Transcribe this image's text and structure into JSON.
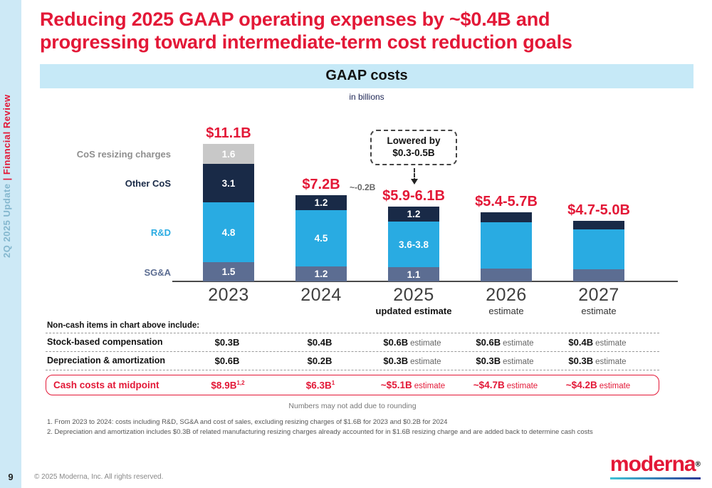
{
  "sidebar": {
    "tab_light": "2Q 2025 Update ",
    "tab_bold": "| Financial Review",
    "page_number": "9"
  },
  "title": "Reducing 2025 GAAP operating expenses by ~$0.4B and progressing toward intermediate-term cost reduction goals",
  "banner": {
    "title": "GAAP costs",
    "subtitle": "in billions"
  },
  "chart_data": {
    "type": "bar",
    "stacked": true,
    "title": "GAAP costs",
    "unit": "USD billions",
    "segment_order": [
      "SG&A",
      "R&D",
      "Other CoS",
      "CoS resizing charges"
    ],
    "segment_colors": {
      "SG&A": "#5c6d92",
      "R&D": "#29abe2",
      "Other CoS": "#192a47",
      "CoS resizing charges": "#c8c8c8"
    },
    "legend_colors": {
      "SG&A": "#5c6d92",
      "R&D": "#29abe2",
      "Other CoS": "#192a47",
      "CoS resizing charges": "#8e8e8e"
    },
    "bars": [
      {
        "year": "2023",
        "total_label": "$11.1B",
        "segments": [
          {
            "name": "SG&A",
            "value": 1.5,
            "label": "1.5"
          },
          {
            "name": "R&D",
            "value": 4.8,
            "label": "4.8"
          },
          {
            "name": "Other CoS",
            "value": 3.1,
            "label": "3.1"
          },
          {
            "name": "CoS resizing charges",
            "value": 1.6,
            "label": "1.6"
          }
        ]
      },
      {
        "year": "2024",
        "total_label": "$7.2B",
        "side_note": "~-0.2B",
        "segments": [
          {
            "name": "SG&A",
            "value": 1.2,
            "label": "1.2"
          },
          {
            "name": "R&D",
            "value": 4.5,
            "label": "4.5"
          },
          {
            "name": "Other CoS",
            "value": 1.2,
            "label": "1.2"
          }
        ]
      },
      {
        "year": "2025",
        "total_label": "$5.9-6.1B",
        "callout": "Lowered by\n$0.3-0.5B",
        "segments": [
          {
            "name": "SG&A",
            "value": 1.1,
            "label": "1.1"
          },
          {
            "name": "R&D",
            "value": 3.7,
            "label": "3.6-3.8"
          },
          {
            "name": "Other CoS",
            "value": 1.2,
            "label": "1.2"
          }
        ]
      },
      {
        "year": "2026",
        "total_label": "$5.4-5.7B",
        "segments": [
          {
            "name": "SG&A",
            "value": 1.0,
            "label": ""
          },
          {
            "name": "R&D",
            "value": 3.75,
            "label": ""
          },
          {
            "name": "Other CoS",
            "value": 0.8,
            "label": ""
          }
        ]
      },
      {
        "year": "2027",
        "total_label": "$4.7-5.0B",
        "segments": [
          {
            "name": "SG&A",
            "value": 0.95,
            "label": ""
          },
          {
            "name": "R&D",
            "value": 3.2,
            "label": ""
          },
          {
            "name": "Other CoS",
            "value": 0.7,
            "label": ""
          }
        ]
      }
    ],
    "x_axis": [
      {
        "year": "2023",
        "sub": ""
      },
      {
        "year": "2024",
        "sub": ""
      },
      {
        "year": "2025",
        "sub": "updated estimate",
        "sub_bold": true
      },
      {
        "year": "2026",
        "sub": "estimate"
      },
      {
        "year": "2027",
        "sub": "estimate"
      }
    ],
    "legend_position": "left",
    "grid": false
  },
  "table": {
    "header": "Non-cash items in chart above include:",
    "rows": [
      {
        "label": "Stock-based compensation",
        "values": [
          {
            "text": "$0.3B"
          },
          {
            "text": "$0.4B"
          },
          {
            "text": "$0.6B",
            "suffix": "estimate"
          },
          {
            "text": "$0.6B",
            "suffix": "estimate"
          },
          {
            "text": "$0.4B",
            "suffix": "estimate"
          }
        ]
      },
      {
        "label": "Depreciation & amortization",
        "values": [
          {
            "text": "$0.6B"
          },
          {
            "text": "$0.2B"
          },
          {
            "text": "$0.3B",
            "suffix": "estimate"
          },
          {
            "text": "$0.3B",
            "suffix": "estimate"
          },
          {
            "text": "$0.3B",
            "suffix": "estimate"
          }
        ]
      }
    ],
    "cash_row": {
      "label": "Cash costs at midpoint",
      "values": [
        {
          "text": "$8.9B",
          "sup": "1,2"
        },
        {
          "text": "$6.3B",
          "sup": "1"
        },
        {
          "text": "~$5.1B",
          "suffix": "estimate"
        },
        {
          "text": "~$4.7B",
          "suffix": "estimate"
        },
        {
          "text": "~$4.2B",
          "suffix": "estimate"
        }
      ]
    },
    "note": "Numbers may not add due to rounding"
  },
  "footnotes": [
    "1. From 2023 to 2024: costs including R&D, SG&A and cost of sales, excluding resizing charges of $1.6B for 2023 and $0.2B for 2024",
    "2. Depreciation and amortization includes $0.3B of related manufacturing resizing charges already accounted for in $1.6B resizing charge and are added back to determine cash costs"
  ],
  "footer": {
    "copyright": "© 2025 Moderna, Inc. All rights reserved.",
    "logo_text": "moderna",
    "logo_reg": "®"
  },
  "colors": {
    "brand_red": "#e31837",
    "banner_blue": "#c6e9f7",
    "sidebar_blue": "#cde9f6"
  }
}
